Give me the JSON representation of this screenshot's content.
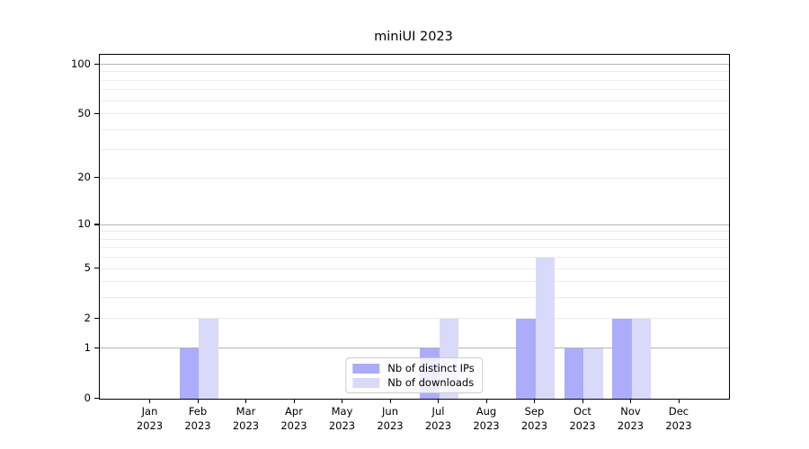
{
  "title": "miniUI 2023",
  "chart_data": {
    "type": "bar",
    "title": "miniUI 2023",
    "categories": [
      "Jan",
      "Feb",
      "Mar",
      "Apr",
      "May",
      "Jun",
      "Jul",
      "Aug",
      "Sep",
      "Oct",
      "Nov",
      "Dec"
    ],
    "year_label": "2023",
    "series": [
      {
        "name": "Nb of distinct IPs",
        "color": "#acacfa",
        "values": [
          0,
          1,
          0,
          0,
          0,
          0,
          1,
          0,
          2,
          1,
          2,
          0
        ]
      },
      {
        "name": "Nb of downloads",
        "color": "#d9d9fa",
        "values": [
          0,
          2,
          0,
          0,
          0,
          0,
          2,
          0,
          6,
          1,
          2,
          0
        ]
      }
    ],
    "xlabel": "",
    "ylabel": "",
    "yscale": "log1p",
    "ylim": [
      0,
      115
    ],
    "yticks": [
      0,
      1,
      2,
      5,
      10,
      20,
      50,
      100
    ],
    "major_gridlines": [
      1,
      10,
      100
    ],
    "minor_gridlines": [
      2,
      3,
      4,
      5,
      6,
      7,
      8,
      9,
      20,
      30,
      40,
      50,
      60,
      70,
      80,
      90
    ],
    "grid": true,
    "legend_position": "lower center"
  },
  "colors": {
    "bar_distinct_ips": "#acacfa",
    "bar_downloads": "#d9d9fa",
    "major_grid": "#b3b3b3",
    "minor_grid": "#ebebeb",
    "axis": "#000000",
    "legend_border": "#cccccc",
    "background": "#ffffff"
  }
}
